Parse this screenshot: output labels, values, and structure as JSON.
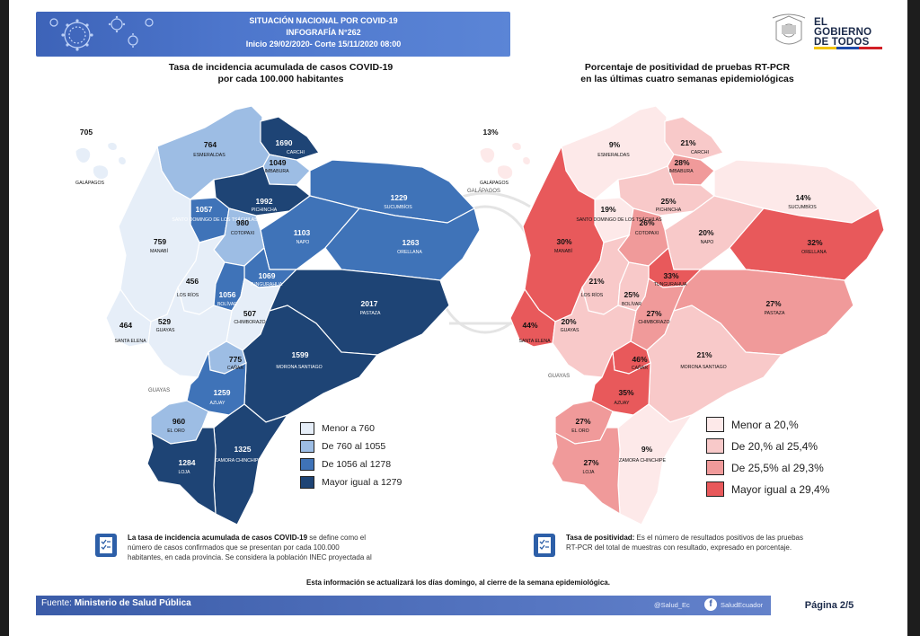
{
  "header": {
    "line1": "SITUACIÓN NACIONAL POR COVID-19",
    "line2": "INFOGRAFÍA N°262",
    "line3": "Inicio 29/02/2020- Corte 15/11/2020 08:00"
  },
  "logo": {
    "line1": "EL",
    "line2": "GOBIERNO",
    "line3": "DE TODOS"
  },
  "left_map": {
    "title1": "Tasa de incidencia acumulada de casos COVID-19",
    "title2": "por cada 100.000 habitantes",
    "legend": [
      {
        "label": "Menor a 760",
        "color": "#e6eef8"
      },
      {
        "label": "De 760 al 1055",
        "color": "#9dbde4"
      },
      {
        "label": "De 1056 al 1278",
        "color": "#3f73b8"
      },
      {
        "label": "Mayor igual a 1279",
        "color": "#1e4475"
      }
    ],
    "provinces": [
      {
        "name": "ESMERALDAS",
        "value": "764"
      },
      {
        "name": "CARCHI",
        "value": "1690"
      },
      {
        "name": "IMBABURA",
        "value": "1049"
      },
      {
        "name": "PICHINCHA",
        "value": "1992"
      },
      {
        "name": "SANTO DOMINGO DE LOS TSÁCHILAS",
        "value": "1057"
      },
      {
        "name": "SUCUMBÍOS",
        "value": "1229"
      },
      {
        "name": "NAPO",
        "value": "1103"
      },
      {
        "name": "ORELLANA",
        "value": "1263"
      },
      {
        "name": "MANABÍ",
        "value": "759"
      },
      {
        "name": "COTOPAXI",
        "value": "980"
      },
      {
        "name": "TUNGURAHUA",
        "value": "1069"
      },
      {
        "name": "LOS RÍOS",
        "value": "456"
      },
      {
        "name": "BOLÍVAR",
        "value": "1056"
      },
      {
        "name": "CHIMBORAZO",
        "value": "507"
      },
      {
        "name": "PASTAZA",
        "value": "2017"
      },
      {
        "name": "SANTA ELENA",
        "value": "464"
      },
      {
        "name": "GUAYAS",
        "value": "529"
      },
      {
        "name": "CAÑAR",
        "value": "775"
      },
      {
        "name": "MORONA SANTIAGO",
        "value": "1599"
      },
      {
        "name": "AZUAY",
        "value": "1259"
      },
      {
        "name": "EL ORO",
        "value": "960"
      },
      {
        "name": "ZAMORA CHINCHIPE",
        "value": "1325"
      },
      {
        "name": "LOJA",
        "value": "1284"
      },
      {
        "name": "GALÁPAGOS",
        "value": "705"
      }
    ],
    "note_bold": "La tasa de incidencia acumulada de casos COVID-19",
    "note_rest1": " se define como el",
    "note_line2": "número de casos confirmados que se presentan por cada 100.000",
    "note_line3": "habitantes, en cada provincia. Se considera la población INEC proyectada al"
  },
  "right_map": {
    "title1": "Porcentaje de positividad de pruebas RT-PCR",
    "title2": "en las últimas cuatro semanas epidemiológicas",
    "legend": [
      {
        "label": "Menor a 20,%",
        "color": "#fde9e9"
      },
      {
        "label": "De 20,% al 25,4%",
        "color": "#f8c9c9"
      },
      {
        "label": "De 25,5% al 29,3%",
        "color": "#f09a9a"
      },
      {
        "label": "Mayor igual a 29,4%",
        "color": "#e8595b"
      }
    ],
    "provinces": [
      {
        "name": "ESMERALDAS",
        "value": "9%"
      },
      {
        "name": "CARCHI",
        "value": "21%"
      },
      {
        "name": "IMBABURA",
        "value": "28%"
      },
      {
        "name": "PICHINCHA",
        "value": "25%"
      },
      {
        "name": "SANTO DOMINGO DE LOS TSÁCHILAS",
        "value": "19%"
      },
      {
        "name": "SUCUMBÍOS",
        "value": "14%"
      },
      {
        "name": "NAPO",
        "value": "20%"
      },
      {
        "name": "ORELLANA",
        "value": "32%"
      },
      {
        "name": "MANABÍ",
        "value": "30%"
      },
      {
        "name": "COTOPAXI",
        "value": "26%"
      },
      {
        "name": "TUNGURAHUA",
        "value": "33%"
      },
      {
        "name": "LOS RÍOS",
        "value": "21%"
      },
      {
        "name": "BOLÍVAR",
        "value": "25%"
      },
      {
        "name": "CHIMBORAZO",
        "value": "27%"
      },
      {
        "name": "PASTAZA",
        "value": "27%"
      },
      {
        "name": "SANTA ELENA",
        "value": "44%"
      },
      {
        "name": "GUAYAS",
        "value": "20%"
      },
      {
        "name": "CAÑAR",
        "value": "46%"
      },
      {
        "name": "MORONA SANTIAGO",
        "value": "21%"
      },
      {
        "name": "AZUAY",
        "value": "35%"
      },
      {
        "name": "EL ORO",
        "value": "27%"
      },
      {
        "name": "ZAMORA CHINCHIPE",
        "value": "9%"
      },
      {
        "name": "LOJA",
        "value": "27%"
      },
      {
        "name": "GALÁPAGOS",
        "value": "13%"
      }
    ],
    "note_bold": "Tasa de positividad:",
    "note_rest1": " Es el número de resultados positivos de las pruebas",
    "note_line2": "RT-PCR del total de muestras con resultado, expresado en porcentaje."
  },
  "update_note": "Esta información se actualizará los días domingo, al cierre de la semana epidemiológica.",
  "footer": {
    "source_label": "Fuente:",
    "source_value": "Ministerio de Salud Pública",
    "twitter": "@Salud_Ec",
    "facebook": "SaludEcuador",
    "page": "Página 2/5"
  },
  "extra_labels": {
    "guayas_water": "GUAYAS",
    "galapagos_right": "GALÁPAGOS"
  }
}
